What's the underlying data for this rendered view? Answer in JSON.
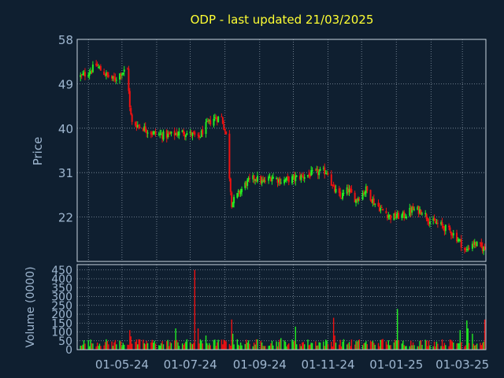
{
  "colors": {
    "background": "#0f1f30",
    "title": "#ffff33",
    "axis_text": "#9fb7d0",
    "grid": "#b8c6d4",
    "up": "#22ee22",
    "down": "#ee1111"
  },
  "chart_data": [
    {
      "type": "candlestick",
      "title": "ODP - last updated 21/03/2025",
      "xlabel": "",
      "ylabel": "Price",
      "ylim": [
        13,
        58
      ],
      "y_ticks": [
        58,
        49,
        40,
        31,
        22
      ],
      "x_tick_labels": [
        "01-05-24",
        "01-07-24",
        "01-09-24",
        "01-11-24",
        "01-01-25",
        "01-03-25"
      ],
      "grid": true,
      "price_anchors": [
        [
          "2024-03-26",
          50.5
        ],
        [
          "2024-04-02",
          51.5
        ],
        [
          "2024-04-08",
          52.8
        ],
        [
          "2024-04-12",
          51.8
        ],
        [
          "2024-04-18",
          50.6
        ],
        [
          "2024-04-24",
          49.8
        ],
        [
          "2024-04-30",
          51.2
        ],
        [
          "2024-05-06",
          51.9
        ],
        [
          "2024-05-08",
          44.0
        ],
        [
          "2024-05-10",
          41.0
        ],
        [
          "2024-05-17",
          40.5
        ],
        [
          "2024-05-28",
          39.0
        ],
        [
          "2024-06-10",
          38.5
        ],
        [
          "2024-06-25",
          39.2
        ],
        [
          "2024-07-03",
          38.7
        ],
        [
          "2024-07-08",
          37.8
        ],
        [
          "2024-07-15",
          40.5
        ],
        [
          "2024-07-22",
          42.0
        ],
        [
          "2024-07-29",
          42.2
        ],
        [
          "2024-08-02",
          38.5
        ],
        [
          "2024-08-07",
          24.8
        ],
        [
          "2024-08-14",
          27.0
        ],
        [
          "2024-08-20",
          28.9
        ],
        [
          "2024-08-28",
          30.0
        ],
        [
          "2024-09-04",
          29.0
        ],
        [
          "2024-09-12",
          30.2
        ],
        [
          "2024-09-20",
          29.3
        ],
        [
          "2024-10-01",
          29.8
        ],
        [
          "2024-10-10",
          30.3
        ],
        [
          "2024-10-22",
          31.0
        ],
        [
          "2024-11-01",
          31.3
        ],
        [
          "2024-11-05",
          28.0
        ],
        [
          "2024-11-12",
          26.0
        ],
        [
          "2024-11-19",
          27.5
        ],
        [
          "2024-11-26",
          25.5
        ],
        [
          "2024-12-05",
          27.6
        ],
        [
          "2024-12-12",
          25.0
        ],
        [
          "2024-12-19",
          23.5
        ],
        [
          "2024-12-27",
          22.0
        ],
        [
          "2025-01-08",
          22.3
        ],
        [
          "2025-01-15",
          23.5
        ],
        [
          "2025-01-24",
          23.3
        ],
        [
          "2025-01-31",
          21.2
        ],
        [
          "2025-02-10",
          20.3
        ],
        [
          "2025-02-20",
          18.8
        ],
        [
          "2025-02-27",
          17.0
        ],
        [
          "2025-03-04",
          15.0
        ],
        [
          "2025-03-10",
          16.8
        ],
        [
          "2025-03-21",
          15.5
        ]
      ]
    },
    {
      "type": "bar",
      "xlabel": "",
      "ylabel": "Volume (0000)",
      "ylim": [
        0,
        480
      ],
      "y_ticks": [
        0,
        50,
        100,
        150,
        200,
        250,
        300,
        350,
        400,
        450
      ],
      "grid": true,
      "volume_spikes": [
        [
          "2024-05-08",
          110
        ],
        [
          "2024-05-09",
          75
        ],
        [
          "2024-06-18",
          120
        ],
        [
          "2024-07-05",
          450
        ],
        [
          "2024-07-08",
          120
        ],
        [
          "2024-07-15",
          80
        ],
        [
          "2024-08-07",
          170
        ],
        [
          "2024-08-08",
          90
        ],
        [
          "2024-09-20",
          65
        ],
        [
          "2024-10-03",
          130
        ],
        [
          "2024-11-06",
          180
        ],
        [
          "2024-11-07",
          80
        ],
        [
          "2024-12-20",
          60
        ],
        [
          "2025-01-02",
          230
        ],
        [
          "2025-02-27",
          110
        ],
        [
          "2025-03-05",
          165
        ],
        [
          "2025-03-06",
          120
        ],
        [
          "2025-03-10",
          90
        ],
        [
          "2025-03-21",
          170
        ]
      ]
    }
  ]
}
